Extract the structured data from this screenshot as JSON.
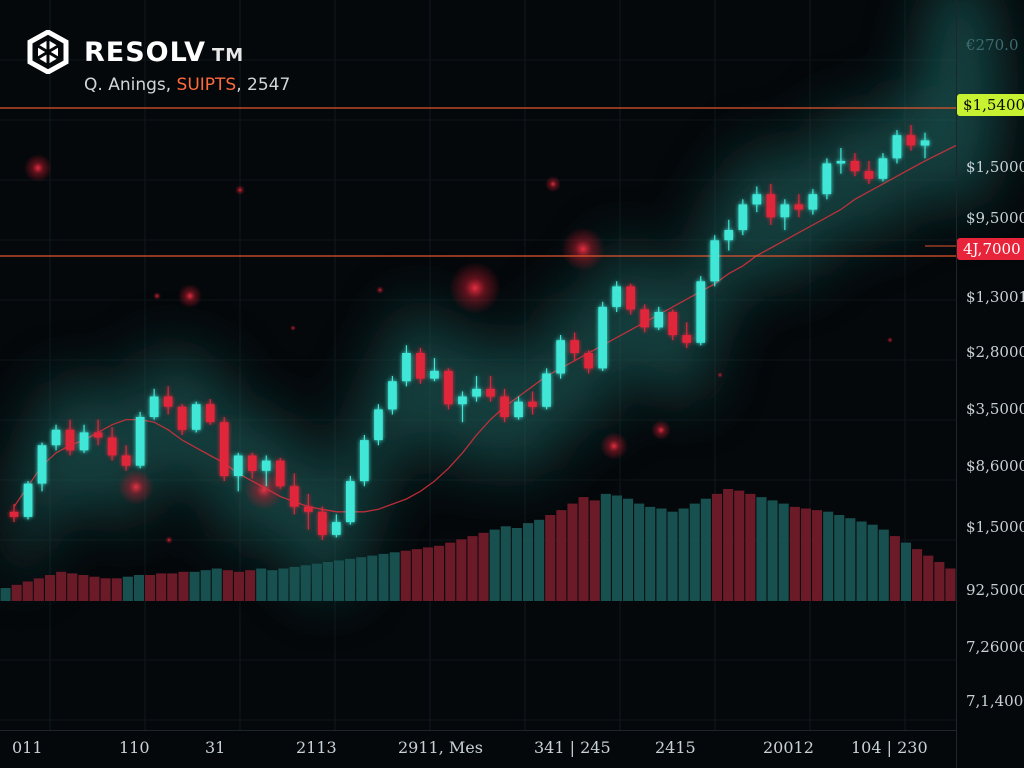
{
  "header": {
    "brand": "RESOLV",
    "trademark": "TM",
    "subtitle_prefix": "Q. Anings, ",
    "subtitle_highlight": "SUIPTS",
    "subtitle_suffix": ", 2547"
  },
  "colors": {
    "background": "#05080b",
    "up": "#3fe6d6",
    "down": "#e0263b",
    "moving_average": "#d9303c",
    "level_line": "#e0552e",
    "tag_green": "#c7f232",
    "tag_red": "#e8243a"
  },
  "chart_data": {
    "type": "candlestick",
    "y_axis_labels": [
      "€270.0",
      "$1,5000",
      "$9,5000",
      "$1,3001",
      "$2,8000",
      "$3,5000",
      "$8,6000",
      "$1,5000",
      "92,5000",
      "7,26000",
      "7,1,4000"
    ],
    "x_axis_labels": [
      "011",
      "110",
      "31",
      "2113",
      "2911, Mes",
      "341 | 245",
      "2415",
      "20012",
      "104 | 230"
    ],
    "price_tags": [
      {
        "label": "$1,5400",
        "style": "green"
      },
      {
        "label": "4J,7000",
        "style": "red"
      }
    ],
    "candles": [
      {
        "o": 48,
        "h": 51,
        "l": 44,
        "c": 46
      },
      {
        "o": 46,
        "h": 60,
        "l": 45,
        "c": 59
      },
      {
        "o": 59,
        "h": 75,
        "l": 56,
        "c": 74
      },
      {
        "o": 74,
        "h": 82,
        "l": 72,
        "c": 80
      },
      {
        "o": 80,
        "h": 84,
        "l": 70,
        "c": 72
      },
      {
        "o": 72,
        "h": 82,
        "l": 71,
        "c": 79
      },
      {
        "o": 79,
        "h": 84,
        "l": 74,
        "c": 77
      },
      {
        "o": 77,
        "h": 81,
        "l": 68,
        "c": 70
      },
      {
        "o": 70,
        "h": 74,
        "l": 64,
        "c": 66
      },
      {
        "o": 66,
        "h": 87,
        "l": 65,
        "c": 85
      },
      {
        "o": 85,
        "h": 96,
        "l": 84,
        "c": 93
      },
      {
        "o": 93,
        "h": 97,
        "l": 86,
        "c": 89
      },
      {
        "o": 89,
        "h": 90,
        "l": 78,
        "c": 80
      },
      {
        "o": 80,
        "h": 91,
        "l": 79,
        "c": 90
      },
      {
        "o": 90,
        "h": 92,
        "l": 82,
        "c": 83
      },
      {
        "o": 83,
        "h": 85,
        "l": 60,
        "c": 62
      },
      {
        "o": 62,
        "h": 71,
        "l": 56,
        "c": 70
      },
      {
        "o": 70,
        "h": 71,
        "l": 61,
        "c": 64
      },
      {
        "o": 64,
        "h": 70,
        "l": 58,
        "c": 68
      },
      {
        "o": 68,
        "h": 69,
        "l": 57,
        "c": 58
      },
      {
        "o": 58,
        "h": 63,
        "l": 47,
        "c": 50
      },
      {
        "o": 50,
        "h": 55,
        "l": 41,
        "c": 48
      },
      {
        "o": 48,
        "h": 50,
        "l": 37,
        "c": 39
      },
      {
        "o": 39,
        "h": 47,
        "l": 38,
        "c": 44
      },
      {
        "o": 44,
        "h": 62,
        "l": 43,
        "c": 60
      },
      {
        "o": 60,
        "h": 78,
        "l": 58,
        "c": 76
      },
      {
        "o": 76,
        "h": 90,
        "l": 74,
        "c": 88
      },
      {
        "o": 88,
        "h": 101,
        "l": 86,
        "c": 99
      },
      {
        "o": 99,
        "h": 113,
        "l": 97,
        "c": 110
      },
      {
        "o": 110,
        "h": 112,
        "l": 98,
        "c": 100
      },
      {
        "o": 100,
        "h": 108,
        "l": 99,
        "c": 103
      },
      {
        "o": 103,
        "h": 104,
        "l": 88,
        "c": 90
      },
      {
        "o": 90,
        "h": 95,
        "l": 83,
        "c": 93
      },
      {
        "o": 93,
        "h": 101,
        "l": 91,
        "c": 96
      },
      {
        "o": 96,
        "h": 101,
        "l": 91,
        "c": 93
      },
      {
        "o": 93,
        "h": 96,
        "l": 83,
        "c": 85
      },
      {
        "o": 85,
        "h": 93,
        "l": 84,
        "c": 91
      },
      {
        "o": 91,
        "h": 95,
        "l": 86,
        "c": 89
      },
      {
        "o": 89,
        "h": 104,
        "l": 88,
        "c": 102
      },
      {
        "o": 102,
        "h": 117,
        "l": 100,
        "c": 115
      },
      {
        "o": 115,
        "h": 118,
        "l": 107,
        "c": 110
      },
      {
        "o": 110,
        "h": 111,
        "l": 102,
        "c": 104
      },
      {
        "o": 104,
        "h": 130,
        "l": 103,
        "c": 128
      },
      {
        "o": 128,
        "h": 138,
        "l": 126,
        "c": 136
      },
      {
        "o": 136,
        "h": 137,
        "l": 125,
        "c": 127
      },
      {
        "o": 127,
        "h": 129,
        "l": 118,
        "c": 120
      },
      {
        "o": 120,
        "h": 128,
        "l": 119,
        "c": 126
      },
      {
        "o": 126,
        "h": 127,
        "l": 115,
        "c": 117
      },
      {
        "o": 117,
        "h": 122,
        "l": 112,
        "c": 114
      },
      {
        "o": 114,
        "h": 140,
        "l": 113,
        "c": 138
      },
      {
        "o": 138,
        "h": 156,
        "l": 136,
        "c": 154
      },
      {
        "o": 154,
        "h": 162,
        "l": 150,
        "c": 158
      },
      {
        "o": 158,
        "h": 170,
        "l": 156,
        "c": 168
      },
      {
        "o": 168,
        "h": 175,
        "l": 165,
        "c": 172
      },
      {
        "o": 172,
        "h": 176,
        "l": 160,
        "c": 163
      },
      {
        "o": 163,
        "h": 170,
        "l": 158,
        "c": 168
      },
      {
        "o": 168,
        "h": 172,
        "l": 163,
        "c": 166
      },
      {
        "o": 166,
        "h": 174,
        "l": 164,
        "c": 172
      },
      {
        "o": 172,
        "h": 186,
        "l": 170,
        "c": 184
      },
      {
        "o": 184,
        "h": 190,
        "l": 180,
        "c": 185
      },
      {
        "o": 185,
        "h": 188,
        "l": 179,
        "c": 181
      },
      {
        "o": 181,
        "h": 185,
        "l": 176,
        "c": 178
      },
      {
        "o": 178,
        "h": 188,
        "l": 177,
        "c": 186
      },
      {
        "o": 186,
        "h": 197,
        "l": 184,
        "c": 195
      },
      {
        "o": 195,
        "h": 199,
        "l": 189,
        "c": 191
      },
      {
        "o": 191,
        "h": 196,
        "l": 186,
        "c": 193
      }
    ],
    "moving_average": [
      50,
      58,
      66,
      71,
      74,
      76,
      79,
      82,
      84,
      84,
      83,
      80,
      76,
      73,
      70,
      67,
      63,
      60,
      57,
      54,
      52,
      50,
      49,
      48,
      48,
      48,
      49,
      51,
      53,
      56,
      60,
      65,
      71,
      78,
      84,
      89,
      93,
      97,
      101,
      104,
      107,
      110,
      113,
      116,
      119,
      122,
      125,
      128,
      131,
      134,
      137,
      141,
      144,
      148,
      151,
      154,
      157,
      160,
      163,
      166,
      170,
      173,
      176,
      179,
      182,
      185
    ],
    "volume": [
      8,
      10,
      12,
      14,
      16,
      18,
      17,
      16,
      15,
      14,
      14,
      15,
      16,
      16,
      17,
      17,
      18,
      18,
      19,
      20,
      19,
      18,
      19,
      20,
      19,
      20,
      21,
      22,
      23,
      24,
      25,
      26,
      27,
      28,
      29,
      30,
      31,
      32,
      33,
      34,
      36,
      38,
      40,
      42,
      44,
      46,
      45,
      48,
      50,
      53,
      56,
      60,
      64,
      62,
      66,
      65,
      63,
      60,
      58,
      57,
      55,
      57,
      60,
      63,
      66,
      69,
      68,
      66,
      64,
      62,
      60,
      58,
      57,
      56,
      55,
      53,
      51,
      49,
      47,
      44,
      40,
      36,
      32,
      28,
      24,
      20
    ],
    "volume_red_indices": [
      1,
      2,
      3,
      4,
      5,
      6,
      7,
      8,
      9,
      10,
      13,
      14,
      15,
      16,
      20,
      21,
      22,
      36,
      37,
      38,
      39,
      40,
      41,
      42,
      43,
      49,
      50,
      51,
      52,
      53,
      64,
      65,
      66,
      67,
      71,
      72,
      73,
      80,
      82,
      83,
      84,
      85
    ]
  }
}
